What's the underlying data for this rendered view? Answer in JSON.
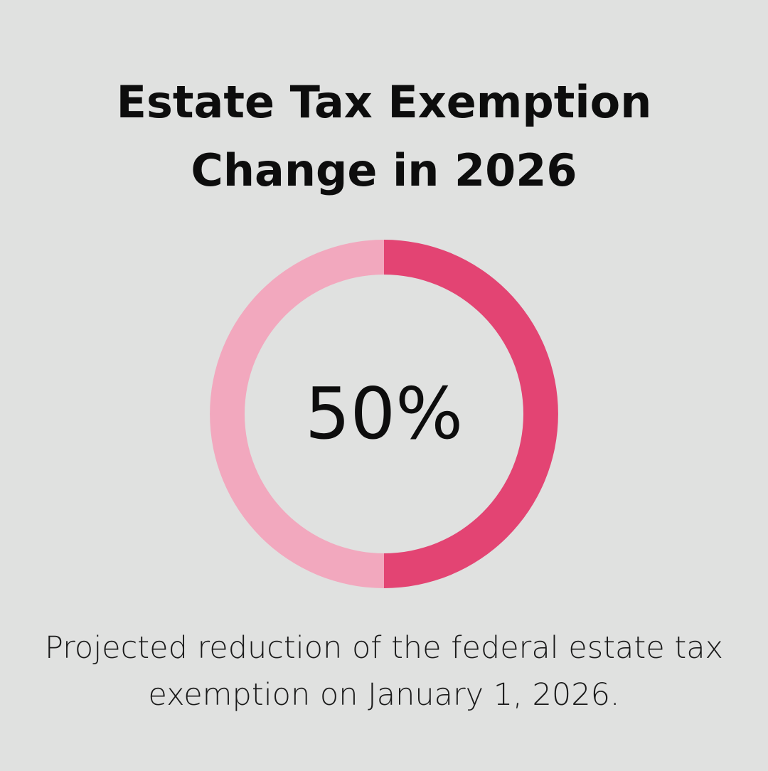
{
  "title": {
    "line1": "Estate Tax Exemption",
    "line2": "Change in 2026"
  },
  "caption": {
    "line1": "Projected reduction of the federal estate tax",
    "line2": "exemption on January 1, 2026."
  },
  "colors": {
    "background": "#e0e1e0",
    "highlight": "#e34473",
    "remainder": "#f2a8be"
  },
  "chart_data": {
    "type": "pie",
    "variant": "donut",
    "center_label": "50%",
    "slices": [
      {
        "value": 50,
        "color": "#e34473"
      },
      {
        "value": 50,
        "color": "#f2a8be"
      }
    ]
  }
}
